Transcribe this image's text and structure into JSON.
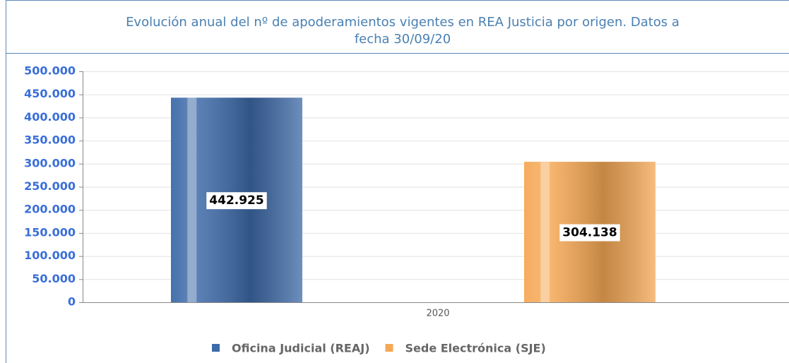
{
  "chart_data": {
    "type": "bar",
    "title": "Evolución anual del nº de apoderamientos vigentes en REA Justicia por origen. Datos a",
    "title_line2": "fecha 30/09/20",
    "categories": [
      "2020"
    ],
    "series": [
      {
        "name": "Oficina Judicial (REAJ)",
        "color": "#3d6aa8",
        "values": [
          442925
        ],
        "value_labels": [
          "442.925"
        ]
      },
      {
        "name": "Sede Electrónica (SJE)",
        "color": "#f5a855",
        "values": [
          304138
        ],
        "value_labels": [
          "304.138"
        ]
      }
    ],
    "ylim": [
      0,
      500000
    ],
    "yticks": [
      0,
      {
        "value": 50000,
        "label": "50.000"
      },
      {
        "value": 100000,
        "label": "100.000"
      },
      {
        "value": 150000,
        "label": "150.000"
      },
      {
        "value": 200000,
        "label": "200.000"
      },
      {
        "value": 250000,
        "label": "250.000"
      },
      {
        "value": 300000,
        "label": "300.000"
      },
      {
        "value": 350000,
        "label": "350.000"
      },
      {
        "value": 400000,
        "label": "400.000"
      },
      {
        "value": 450000,
        "label": "450.000"
      },
      {
        "value": 500000,
        "label": "500.000"
      }
    ],
    "grid": true
  }
}
